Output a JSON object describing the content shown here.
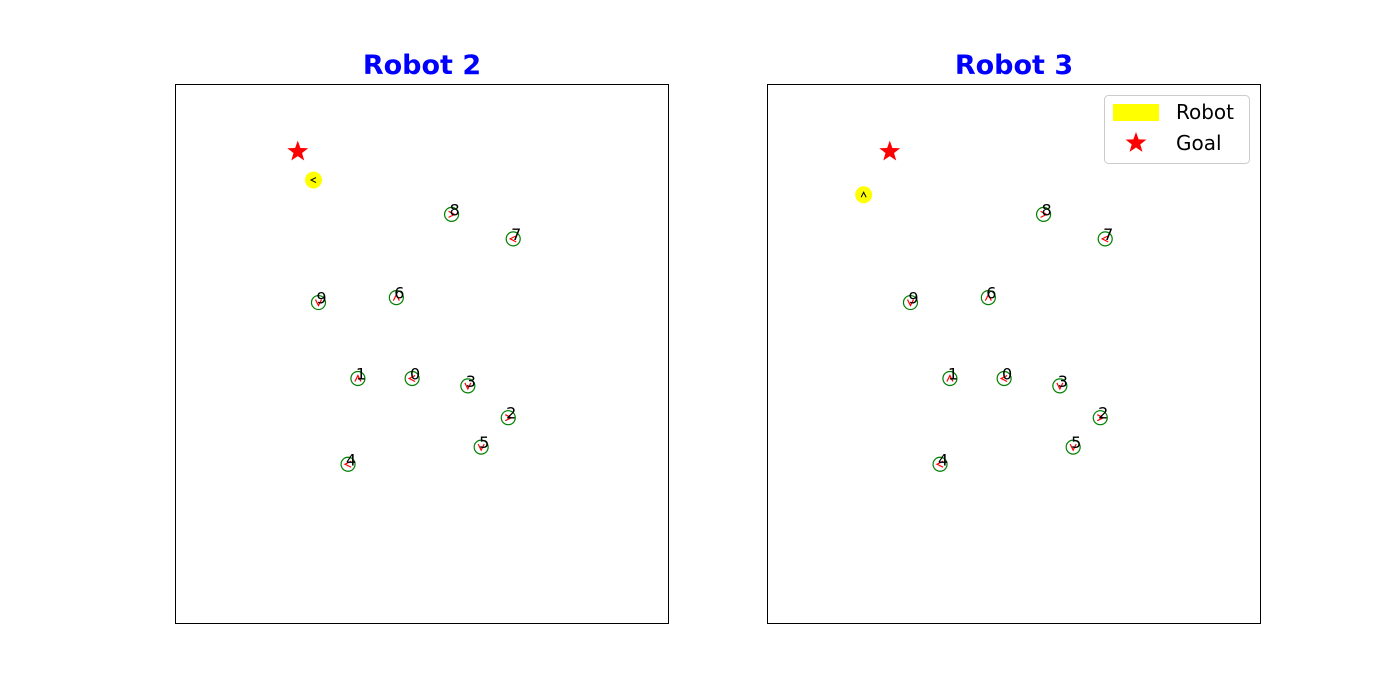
{
  "colors": {
    "title": "#0000ff",
    "robot": "#ffff00",
    "goal": "#ff0000",
    "obstacle_circle": "#008000",
    "heading": "#ff0000",
    "label": "#000000"
  },
  "legend": {
    "robot_label": "Robot",
    "goal_label": "Goal"
  },
  "chart_data": [
    {
      "type": "scatter",
      "title": "Robot 2",
      "xlim": [
        0,
        10
      ],
      "ylim": [
        0,
        11
      ],
      "grid": false,
      "axes_ticks": false,
      "legend": null,
      "robot": {
        "x": 2.8,
        "y": 9.05,
        "heading": "left"
      },
      "goal": {
        "x": 2.48,
        "y": 9.63
      },
      "obstacles": [
        {
          "id": "0",
          "x": 4.8,
          "y": 5.0
        },
        {
          "id": "1",
          "x": 3.7,
          "y": 5.0
        },
        {
          "id": "2",
          "x": 6.75,
          "y": 4.2
        },
        {
          "id": "3",
          "x": 5.93,
          "y": 4.85
        },
        {
          "id": "4",
          "x": 3.5,
          "y": 3.25
        },
        {
          "id": "5",
          "x": 6.2,
          "y": 3.6
        },
        {
          "id": "6",
          "x": 4.48,
          "y": 6.65
        },
        {
          "id": "7",
          "x": 6.85,
          "y": 7.85
        },
        {
          "id": "8",
          "x": 5.6,
          "y": 8.35
        },
        {
          "id": "9",
          "x": 2.9,
          "y": 6.55
        }
      ]
    },
    {
      "type": "scatter",
      "title": "Robot 3",
      "xlim": [
        0,
        10
      ],
      "ylim": [
        0,
        11
      ],
      "grid": false,
      "axes_ticks": false,
      "legend": "top-right",
      "robot": {
        "x": 1.95,
        "y": 8.75,
        "heading": "up"
      },
      "goal": {
        "x": 2.48,
        "y": 9.63
      },
      "obstacles": [
        {
          "id": "0",
          "x": 4.8,
          "y": 5.0
        },
        {
          "id": "1",
          "x": 3.7,
          "y": 5.0
        },
        {
          "id": "2",
          "x": 6.75,
          "y": 4.2
        },
        {
          "id": "3",
          "x": 5.93,
          "y": 4.85
        },
        {
          "id": "4",
          "x": 3.5,
          "y": 3.25
        },
        {
          "id": "5",
          "x": 6.2,
          "y": 3.6
        },
        {
          "id": "6",
          "x": 4.48,
          "y": 6.65
        },
        {
          "id": "7",
          "x": 6.85,
          "y": 7.85
        },
        {
          "id": "8",
          "x": 5.6,
          "y": 8.35
        },
        {
          "id": "9",
          "x": 2.9,
          "y": 6.55
        }
      ]
    }
  ]
}
